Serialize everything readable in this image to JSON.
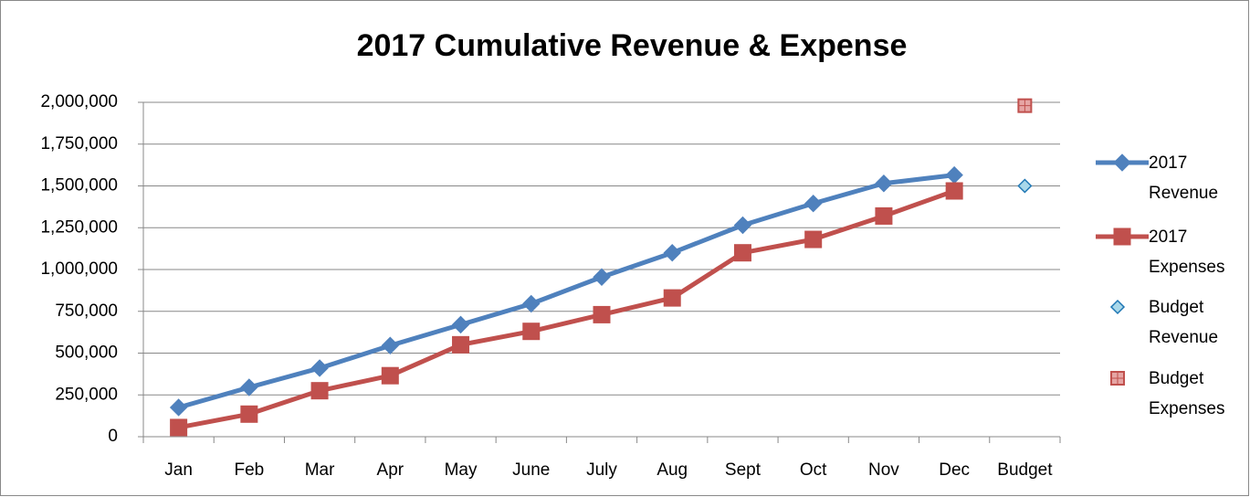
{
  "chart_data": {
    "type": "line",
    "title": "2017 Cumulative Revenue & Expense",
    "categories": [
      "Jan",
      "Feb",
      "Mar",
      "Apr",
      "May",
      "June",
      "July",
      "Aug",
      "Sept",
      "Oct",
      "Nov",
      "Dec",
      "Budget"
    ],
    "series": [
      {
        "name": "2017 Revenue",
        "color": "#4f81bd",
        "marker": "diamond",
        "line": true,
        "values": [
          175000,
          295000,
          410000,
          545000,
          670000,
          795000,
          955000,
          1100000,
          1265000,
          1395000,
          1515000,
          1565000,
          null
        ]
      },
      {
        "name": "2017 Expenses",
        "color": "#c0504d",
        "marker": "square",
        "line": true,
        "values": [
          55000,
          135000,
          275000,
          365000,
          550000,
          630000,
          730000,
          830000,
          1100000,
          1180000,
          1320000,
          1470000,
          null
        ]
      },
      {
        "name": "Budget Revenue",
        "color": "#4bacc6",
        "marker": "diamond",
        "line": false,
        "values": [
          null,
          null,
          null,
          null,
          null,
          null,
          null,
          null,
          null,
          null,
          null,
          null,
          1500000
        ]
      },
      {
        "name": "Budget Expenses",
        "color": "#c0504d",
        "marker": "square",
        "line": false,
        "values": [
          null,
          null,
          null,
          null,
          null,
          null,
          null,
          null,
          null,
          null,
          null,
          null,
          1980000
        ]
      }
    ],
    "ylim": [
      0,
      2000000
    ],
    "yticks": [
      0,
      {
        "value": 250000,
        "label": "250,000"
      },
      {
        "value": 500000,
        "label": "500,000"
      },
      {
        "value": 750000,
        "label": "750,000"
      },
      {
        "value": 1000000,
        "label": "1,000,000"
      },
      {
        "value": 1250000,
        "label": "1,250,000"
      },
      {
        "value": 1500000,
        "label": "1,500,000"
      },
      {
        "value": 1750000,
        "label": "1,750,000"
      },
      {
        "value": 2000000,
        "label": "2,000,000"
      }
    ],
    "grid": true,
    "legend": "right"
  }
}
